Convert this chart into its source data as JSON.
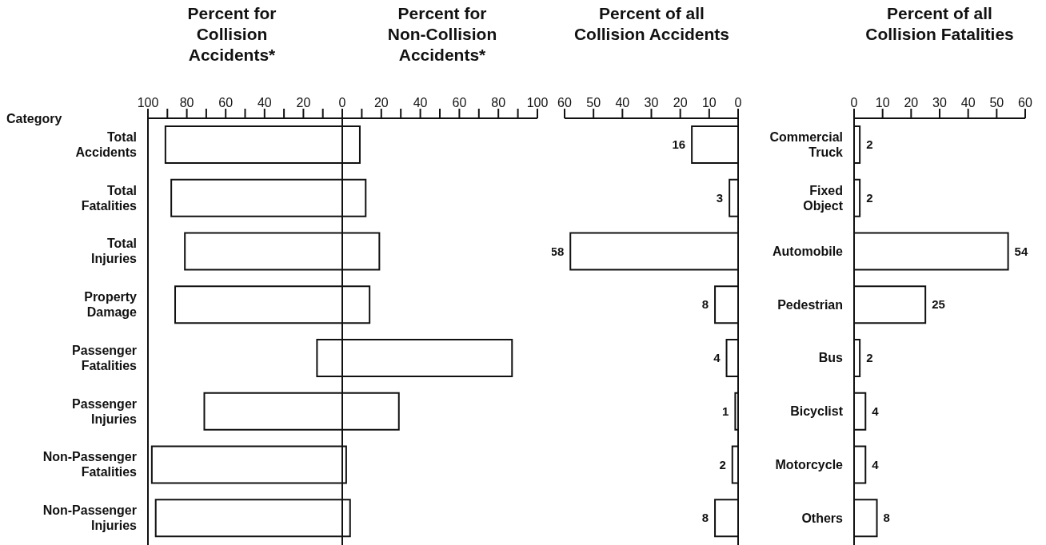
{
  "chart_data": [
    {
      "type": "bar",
      "orientation": "horizontal",
      "title": "Percent for Collision Accidents*",
      "ylabel": "Category",
      "categories": [
        "Total Accidents",
        "Total Fatalities",
        "Total Injuries",
        "Property Damage",
        "Passenger Fatalities",
        "Passenger Injuries",
        "Non-Passenger Fatalities",
        "Non-Passenger Injuries"
      ],
      "values": [
        91,
        88,
        81,
        86,
        13,
        71,
        98,
        96
      ],
      "color": "#ffffff",
      "xlim": [
        100,
        0
      ],
      "xticks": [
        100,
        {
          "value": 90,
          "label": null
        },
        80,
        {
          "value": 70,
          "label": null
        },
        60,
        {
          "value": 50,
          "label": null
        },
        40,
        {
          "value": 30,
          "label": null
        },
        20,
        {
          "value": 10,
          "label": null
        },
        0
      ]
    },
    {
      "type": "bar",
      "orientation": "horizontal",
      "title": "Percent for Non-Collision Accidents*",
      "values": [
        9,
        12,
        19,
        14,
        87,
        29,
        2,
        4
      ],
      "color": "#ffffff",
      "tick_labels": "x",
      "xlim": [
        0,
        100
      ],
      "xticks": [
        {
          "value": 0,
          "label": null
        },
        {
          "value": 10,
          "label": null
        },
        20,
        {
          "value": 30,
          "label": null
        },
        40,
        {
          "value": 50,
          "label": null
        },
        60,
        {
          "value": 70,
          "label": null
        },
        80,
        {
          "value": 90,
          "label": null
        },
        100
      ]
    },
    {
      "type": "bar",
      "orientation": "horizontal",
      "title": "Percent of all Collision Accidents",
      "values": [
        16,
        3,
        58,
        8,
        4,
        1,
        2,
        8
      ],
      "color": "#ffffff",
      "data_labels": true,
      "tick_labels": "x",
      "xlim": [
        60,
        0
      ],
      "xticks": [
        60,
        50,
        40,
        30,
        20,
        10,
        0
      ]
    },
    {
      "type": "bar",
      "orientation": "horizontal",
      "title": "Percent of all Collision Fatalities",
      "categories": [
        "Commercial Truck",
        "Fixed Object",
        "Automobile",
        "Pedestrian",
        "Bus",
        "Bicyclist",
        "Motorcycle",
        "Others"
      ],
      "values": [
        2,
        2,
        54,
        25,
        2,
        4,
        4,
        8
      ],
      "color": "#ffffff",
      "data_labels": true,
      "xlim": [
        0,
        60
      ],
      "xticks": [
        0,
        10,
        20,
        30,
        40,
        50,
        60
      ]
    }
  ]
}
